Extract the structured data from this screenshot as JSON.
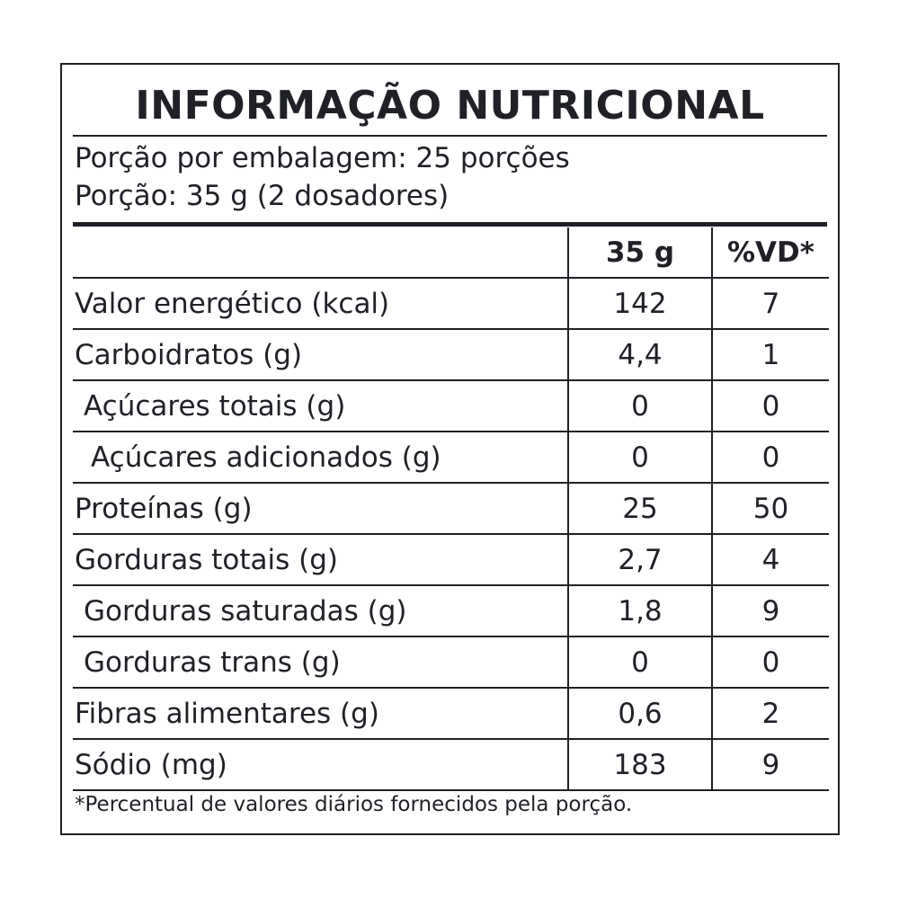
{
  "label": {
    "title": "INFORMAÇÃO NUTRICIONAL",
    "servings_per_package": "Porção por embalagem: 25 porções",
    "serving_size": "Porção: 35 g (2 dosadores)",
    "columns": [
      "",
      "35 g",
      "%VD*"
    ],
    "rows": [
      {
        "name": "Valor energético (kcal)",
        "amount": "142",
        "dv": "7",
        "indent": 0
      },
      {
        "name": "Carboidratos (g)",
        "amount": "4,4",
        "dv": "1",
        "indent": 0
      },
      {
        "name": "Açúcares totais (g)",
        "amount": "0",
        "dv": "0",
        "indent": 1
      },
      {
        "name": "Açúcares adicionados (g)",
        "amount": "0",
        "dv": "0",
        "indent": 2
      },
      {
        "name": "Proteínas (g)",
        "amount": "25",
        "dv": "50",
        "indent": 0
      },
      {
        "name": "Gorduras totais (g)",
        "amount": "2,7",
        "dv": "4",
        "indent": 0
      },
      {
        "name": "Gorduras saturadas (g)",
        "amount": "1,8",
        "dv": "9",
        "indent": 1
      },
      {
        "name": "Gorduras trans (g)",
        "amount": "0",
        "dv": "0",
        "indent": 1
      },
      {
        "name": "Fibras alimentares (g)",
        "amount": "0,6",
        "dv": "2",
        "indent": 0
      },
      {
        "name": "Sódio (mg)",
        "amount": "183",
        "dv": "9",
        "indent": 0
      }
    ],
    "footnote": "*Percentual de valores diários fornecidos pela porção."
  }
}
